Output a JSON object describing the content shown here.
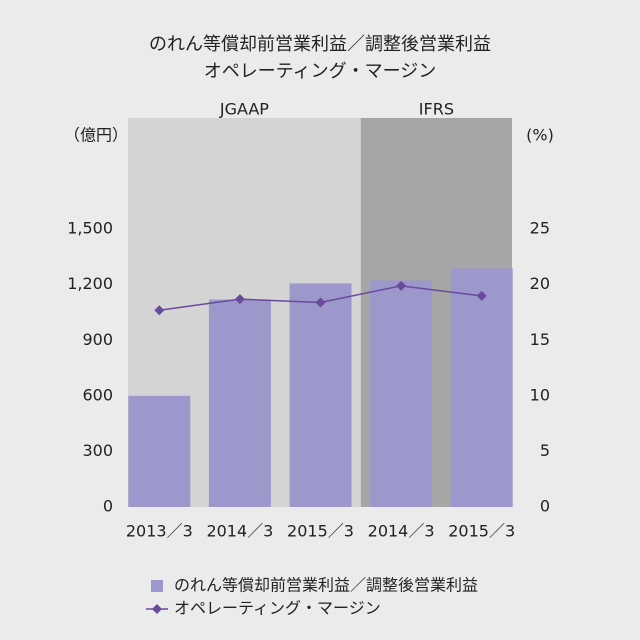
{
  "chart_data": {
    "type": "bar_line",
    "title": "のれん等償却前営業利益／調整後営業利益",
    "subtitle": "オペレーティング・マージン",
    "y_label": "（億円）",
    "y2_label": "(%)",
    "categories": [
      "2013／3",
      "2014／3",
      "2015／3",
      "2014／3",
      "2015／3"
    ],
    "regions": [
      {
        "label": "JGAAP",
        "start": 0,
        "end": 2,
        "color": "#d4d4d4"
      },
      {
        "label": "IFRS",
        "start": 3,
        "end": 4,
        "color": "#a6a6a6"
      }
    ],
    "series": [
      {
        "name": "のれん等償却前営業利益／調整後営業利益",
        "type": "bar",
        "color": "#9c98cc",
        "values": [
          600,
          1120,
          1207,
          1223,
          1288
        ]
      },
      {
        "name": "オペレーティング・マージン",
        "type": "line",
        "axis": "y2",
        "color": "#6a4a9a",
        "values": [
          17.7,
          18.7,
          18.4,
          19.9,
          19.0
        ]
      }
    ],
    "ylim": [
      0,
      2100
    ],
    "yticks": [
      0,
      300,
      600,
      900,
      {
        "value": 1200,
        "label": "1,200"
      },
      {
        "value": 1500,
        "label": "1,500"
      }
    ],
    "y2lim": [
      0,
      35
    ],
    "y2ticks": [
      0,
      5,
      10,
      15,
      20,
      25
    ]
  }
}
